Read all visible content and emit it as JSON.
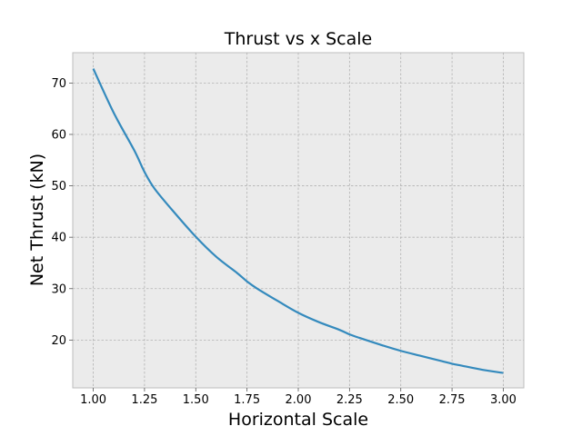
{
  "chart_data": {
    "type": "line",
    "title": "Thrust vs x Scale",
    "xlabel": "Horizontal Scale",
    "ylabel": "Net Thrust (kN)",
    "xlim": [
      0.9,
      3.1
    ],
    "ylim": [
      10.7,
      75.9
    ],
    "grid": true,
    "xticks": [
      1.0,
      1.25,
      1.5,
      1.75,
      2.0,
      2.25,
      2.5,
      2.75,
      3.0
    ],
    "xtick_labels": [
      "1.00",
      "1.25",
      "1.50",
      "1.75",
      "2.00",
      "2.25",
      "2.50",
      "2.75",
      "3.00"
    ],
    "yticks": [
      20,
      30,
      40,
      50,
      60,
      70
    ],
    "ytick_labels": [
      "20",
      "30",
      "40",
      "50",
      "60",
      "70"
    ],
    "series": [
      {
        "color": "#348abd",
        "x": [
          1.0,
          1.1,
          1.2,
          1.25,
          1.3,
          1.4,
          1.5,
          1.6,
          1.7,
          1.75,
          1.8,
          1.9,
          2.0,
          2.1,
          2.2,
          2.25,
          2.3,
          2.4,
          2.5,
          2.6,
          2.7,
          2.75,
          2.8,
          2.9,
          3.0
        ],
        "y": [
          72.8,
          64.2,
          56.9,
          52.7,
          49.4,
          44.6,
          40.1,
          36.2,
          33.1,
          31.4,
          30.0,
          27.6,
          25.3,
          23.5,
          22.0,
          21.1,
          20.4,
          19.1,
          17.9,
          16.9,
          15.9,
          15.4,
          15.0,
          14.2,
          13.6
        ]
      }
    ]
  }
}
